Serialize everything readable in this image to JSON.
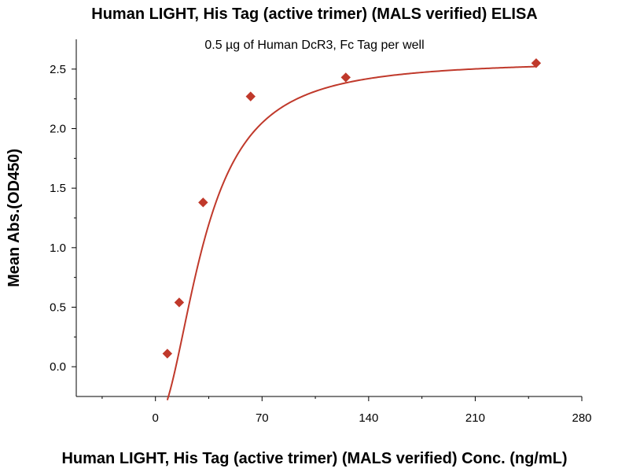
{
  "chart_data": {
    "type": "scatter",
    "title": "Human LIGHT, His Tag (active trimer) (MALS verified) ELISA",
    "subtitle": "0.5 µg of Human DcR3, Fc Tag per well",
    "xlabel": "Human LIGHT, His Tag (active trimer) (MALS verified) Conc. (ng/mL)",
    "ylabel": "Mean Abs.(OD450)",
    "xlim": [
      -52,
      280
    ],
    "ylim": [
      -0.25,
      2.75
    ],
    "xticks": [
      0,
      70,
      140,
      210,
      280
    ],
    "yticks": [
      0.0,
      0.5,
      1.0,
      1.5,
      2.0,
      2.5
    ],
    "xtick_labels": [
      "0",
      "70",
      "140",
      "210",
      "280"
    ],
    "ytick_labels": [
      "0.0",
      "0.5",
      "1.0",
      "1.5",
      "2.0",
      "2.5"
    ],
    "grid": false,
    "series": [
      {
        "marker": "diamond",
        "color": "#c0392b",
        "x": [
          7.8,
          15.6,
          31.3,
          62.5,
          125,
          250
        ],
        "y": [
          0.11,
          0.54,
          1.38,
          2.27,
          2.43,
          2.55
        ]
      }
    ],
    "fit_curve": {
      "color": "#c0392b",
      "model": "4PL",
      "bottom": -0.45,
      "top": 2.57,
      "ec50": 32,
      "hill": 2.0
    }
  }
}
